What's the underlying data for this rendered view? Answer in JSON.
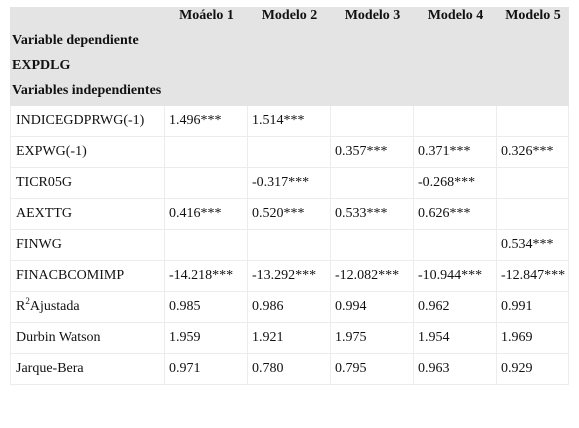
{
  "header": {
    "blank": "",
    "models": [
      "Moáelo 1",
      "Modelo 2",
      "Modelo 3",
      "Modelo 4",
      "Modelo 5"
    ],
    "dependent_label": "Variable dependiente",
    "dependent_var": "EXPDLG",
    "independent_label": "Variables independientes"
  },
  "rows": [
    {
      "label": "INDICEGDPRWG(-1)",
      "values": [
        "1.496***",
        "1.514***",
        "",
        "",
        ""
      ]
    },
    {
      "label": "EXPWG(-1)",
      "values": [
        "",
        "",
        "0.357***",
        "0.371***",
        "0.326***"
      ]
    },
    {
      "label": "TICR05G",
      "values": [
        "",
        "-0.317***",
        "",
        "-0.268***",
        ""
      ]
    },
    {
      "label": "AEXTTG",
      "values": [
        "0.416***",
        "0.520***",
        "0.533***",
        "0.626***",
        ""
      ]
    },
    {
      "label": "FINWG",
      "values": [
        "",
        "",
        "",
        "",
        "0.534***"
      ]
    },
    {
      "label": "FINACBCOMIMP",
      "values": [
        "-14.218***",
        "-13.292***",
        "-12.082***",
        "-10.944***",
        "-12.847***"
      ]
    },
    {
      "label_main": "R",
      "label_sup": "2",
      "label_rest": "Ajustada",
      "values": [
        "0.985",
        "0.986",
        "0.994",
        "0.962",
        "0.991"
      ]
    },
    {
      "label": "Durbin Watson",
      "values": [
        "1.959",
        "1.921",
        "1.975",
        "1.954",
        "1.969"
      ]
    },
    {
      "label": "Jarque-Bera",
      "values": [
        "0.971",
        "0.780",
        "0.795",
        "0.963",
        "0.929"
      ]
    }
  ]
}
